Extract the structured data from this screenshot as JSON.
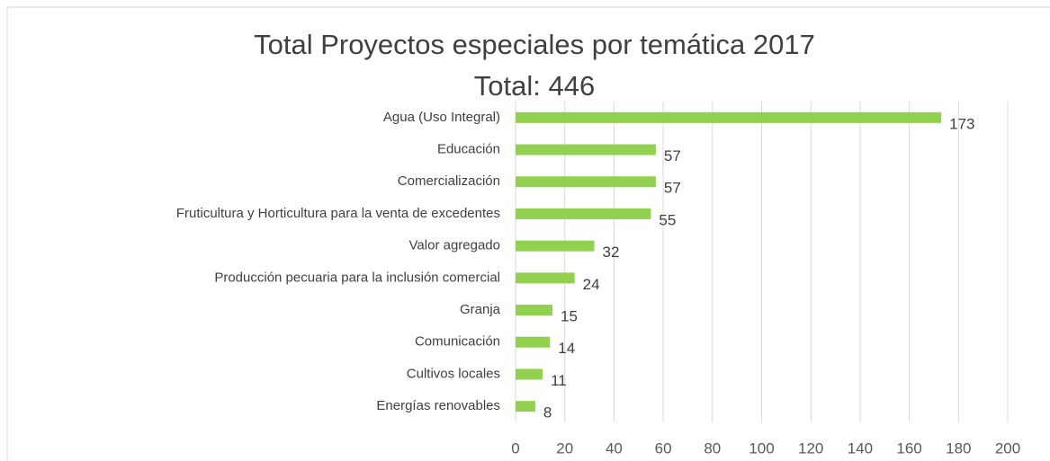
{
  "chart_data": {
    "type": "bar",
    "orientation": "horizontal",
    "title": "Total Proyectos especiales por temática 2017",
    "subtitle": "Total: 446",
    "categories": [
      "Agua (Uso Integral)",
      "Educación",
      "Comercialización",
      "Fruticultura y Horticultura para la venta de excedentes",
      "Valor agregado",
      "Producción pecuaria para la inclusión comercial",
      "Granja",
      "Comunicación",
      "Cultivos locales",
      "Energías renovables"
    ],
    "values": [
      173,
      57,
      57,
      55,
      32,
      24,
      15,
      14,
      11,
      8
    ],
    "color": "#92d050",
    "xlim": [
      0,
      200
    ],
    "xticks": [
      0,
      20,
      40,
      60,
      80,
      100,
      120,
      140,
      160,
      180,
      200
    ],
    "grid": true
  }
}
